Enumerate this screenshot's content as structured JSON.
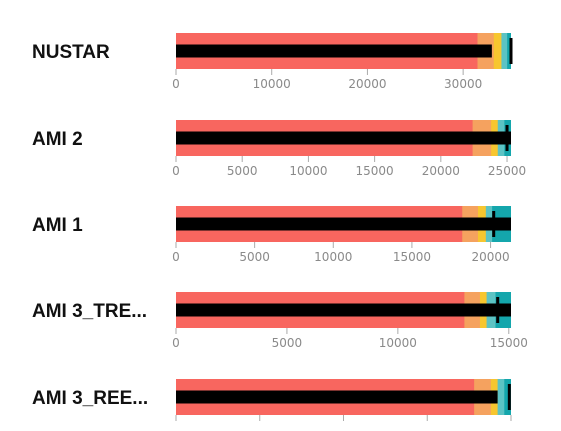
{
  "chart_data": {
    "type": "bullet",
    "colors": {
      "band_1": "#F8665F",
      "band_2": "#F5A25F",
      "band_3": "#F7C62F",
      "band_4": "#5CC3C4",
      "band_5": "#14A6AC",
      "measure": "#000000",
      "target": "#000000",
      "axis": "#aaaaaa",
      "tick_text": "#8a8a8a"
    },
    "rows": [
      {
        "label": "NUSTAR",
        "domain": [
          0,
          35000
        ],
        "ticks": [
          0,
          10000,
          20000,
          30000
        ],
        "tick_labels": [
          "0",
          "10000",
          "20000",
          "30000"
        ],
        "ranges": [
          31500,
          33200,
          34000,
          34600,
          35000
        ],
        "measure": 33000,
        "target": 35000
      },
      {
        "label": "AMI 2",
        "domain": [
          0,
          25300
        ],
        "ticks": [
          0,
          5000,
          10000,
          15000,
          20000,
          25000
        ],
        "tick_labels": [
          "0",
          "5000",
          "10000",
          "15000",
          "20000",
          "25000"
        ],
        "ranges": [
          22400,
          23800,
          24300,
          24800,
          25300
        ],
        "measure": 25300,
        "target": 25000
      },
      {
        "label": "AMI 1",
        "domain": [
          0,
          21300
        ],
        "ticks": [
          0,
          5000,
          10000,
          15000,
          20000
        ],
        "tick_labels": [
          "0",
          "5000",
          "10000",
          "15000",
          "20000"
        ],
        "ranges": [
          18200,
          19200,
          19700,
          20100,
          21300
        ],
        "measure": 21300,
        "target": 20200
      },
      {
        "label": "AMI 3_TRE...",
        "domain": [
          0,
          15100
        ],
        "ticks": [
          0,
          5000,
          10000,
          15000
        ],
        "tick_labels": [
          "0",
          "5000",
          "10000",
          "15000"
        ],
        "ranges": [
          13000,
          13700,
          14000,
          14400,
          15100
        ],
        "measure": 15100,
        "target": 14500
      },
      {
        "label": "AMI 3_REE...",
        "domain": [
          0,
          4000
        ],
        "ticks": [
          0,
          1000,
          2000,
          3000,
          4000
        ],
        "tick_labels": [],
        "ranges": [
          3560,
          3760,
          3840,
          3920,
          4000
        ],
        "measure": 3840,
        "target": 3980
      }
    ]
  }
}
